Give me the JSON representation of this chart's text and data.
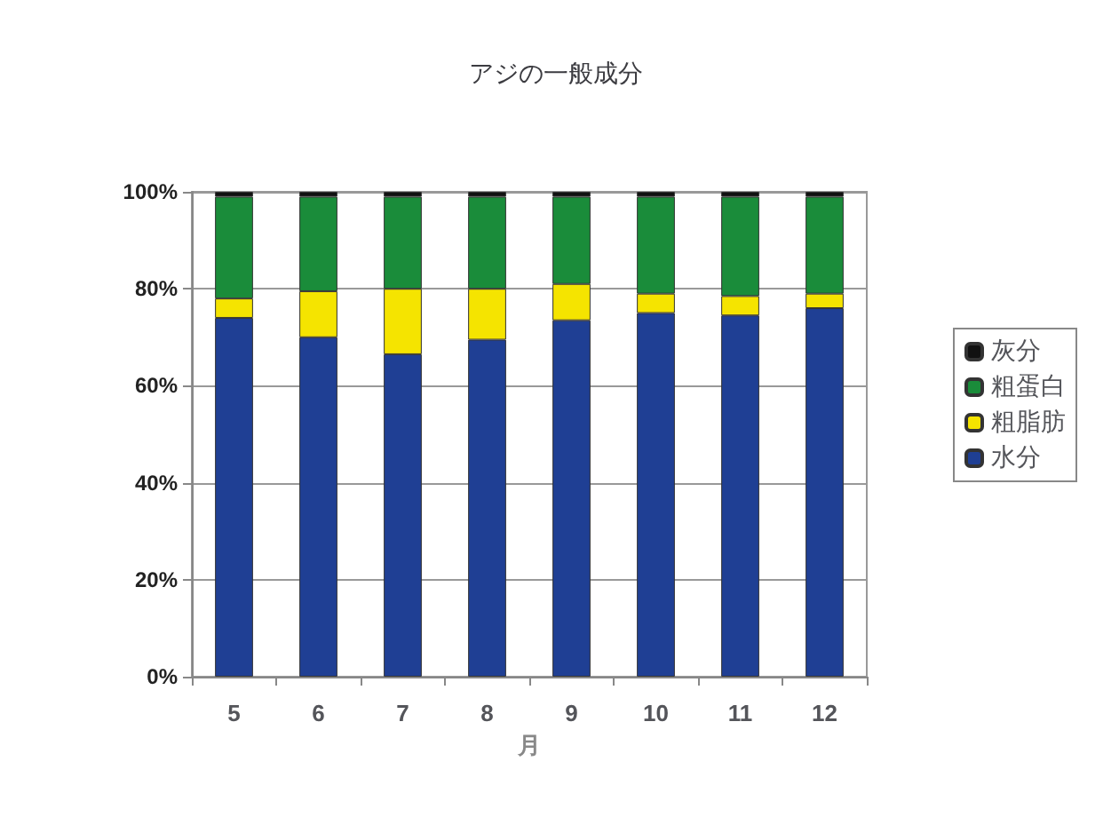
{
  "chart_data": {
    "type": "bar",
    "title": "アジの一般成分",
    "xlabel": "月",
    "stacked": true,
    "categories": [
      "5",
      "6",
      "7",
      "8",
      "9",
      "10",
      "11",
      "12"
    ],
    "series": [
      {
        "name": "水分",
        "color": "#1f3f94",
        "values": [
          74,
          70,
          66.5,
          69.5,
          73.5,
          75,
          74.5,
          76
        ]
      },
      {
        "name": "粗脂肪",
        "color": "#f5e400",
        "values": [
          4,
          9.5,
          13.5,
          10.5,
          7.5,
          4,
          4,
          3
        ]
      },
      {
        "name": "粗蛋白",
        "color": "#1a8c3a",
        "values": [
          21,
          19.5,
          19,
          19,
          18,
          20,
          20.5,
          20
        ]
      },
      {
        "name": "灰分",
        "color": "#111111",
        "values": [
          1,
          1,
          1,
          1,
          1,
          1,
          1,
          1
        ]
      }
    ],
    "ylim": [
      0,
      100
    ],
    "yticks": [
      {
        "value": 0,
        "label": "0%"
      },
      {
        "value": 20,
        "label": "20%"
      },
      {
        "value": 40,
        "label": "40%"
      },
      {
        "value": 60,
        "label": "60%"
      },
      {
        "value": 80,
        "label": "80%"
      },
      {
        "value": 100,
        "label": "100%"
      }
    ],
    "grid": "y",
    "legend": "right"
  }
}
